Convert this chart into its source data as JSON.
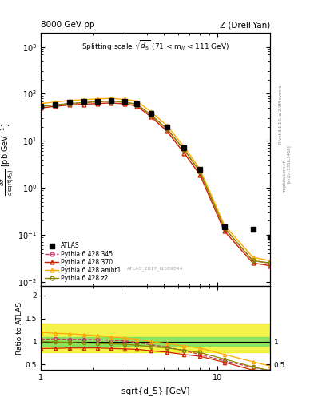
{
  "title_left": "8000 GeV pp",
  "title_right": "Z (Drell-Yan)",
  "annotation": "Splitting scale $\\sqrt{d_5}$ (71 < m$_{ll}$ < 111 GeV)",
  "watermark": "ATLAS_2017_I1589844",
  "ylabel_main": "d$\\sigma$/dsqrt($\\overline{d_5}$) [pb,GeV$^{-1}$]",
  "ylabel_ratio": "Ratio to ATLAS",
  "xlabel": "sqrt{d_5} [GeV]",
  "atlas_x": [
    1.0,
    1.2,
    1.45,
    1.75,
    2.1,
    2.5,
    3.0,
    3.5,
    4.2,
    5.2,
    6.5,
    8.0,
    11.0,
    16.0,
    20.0
  ],
  "atlas_y": [
    55,
    60,
    65,
    68,
    70,
    72,
    68,
    62,
    38,
    20,
    7.0,
    2.5,
    0.15,
    0.13,
    0.09
  ],
  "py345_x": [
    1.0,
    1.2,
    1.45,
    1.75,
    2.1,
    2.5,
    3.0,
    3.5,
    4.2,
    5.2,
    6.5,
    8.0,
    11.0,
    16.0,
    20.0
  ],
  "py345_y": [
    54,
    58,
    62,
    65,
    68,
    70,
    66,
    60,
    36,
    18,
    6.5,
    2.2,
    0.14,
    0.028,
    0.025
  ],
  "py370_x": [
    1.0,
    1.2,
    1.45,
    1.75,
    2.1,
    2.5,
    3.0,
    3.5,
    4.2,
    5.2,
    6.5,
    8.0,
    11.0,
    16.0,
    20.0
  ],
  "py370_y": [
    50,
    54,
    58,
    60,
    62,
    64,
    61,
    55,
    33,
    16,
    5.5,
    1.9,
    0.12,
    0.025,
    0.022
  ],
  "pyambt1_x": [
    1.0,
    1.2,
    1.45,
    1.75,
    2.1,
    2.5,
    3.0,
    3.5,
    4.2,
    5.2,
    6.5,
    8.0,
    11.0,
    16.0,
    20.0
  ],
  "pyambt1_y": [
    62,
    67,
    72,
    75,
    78,
    80,
    76,
    70,
    42,
    21,
    7.5,
    2.5,
    0.16,
    0.033,
    0.028
  ],
  "pyz2_x": [
    1.0,
    1.2,
    1.45,
    1.75,
    2.1,
    2.5,
    3.0,
    3.5,
    4.2,
    5.2,
    6.5,
    8.0,
    11.0,
    16.0,
    20.0
  ],
  "pyz2_y": [
    54,
    58,
    62,
    65,
    68,
    70,
    66,
    60,
    36,
    18,
    6.5,
    2.2,
    0.14,
    0.028,
    0.025
  ],
  "ratio_py345_x": [
    1.0,
    1.2,
    1.45,
    1.75,
    2.1,
    2.5,
    3.0,
    3.5,
    4.2,
    5.2,
    6.5,
    8.0,
    11.0,
    16.0,
    20.0
  ],
  "ratio_py345_y": [
    1.05,
    1.06,
    1.05,
    1.05,
    1.04,
    1.03,
    1.01,
    0.98,
    0.93,
    0.88,
    0.8,
    0.72,
    0.58,
    0.44,
    0.37
  ],
  "ratio_py370_x": [
    1.0,
    1.2,
    1.45,
    1.75,
    2.1,
    2.5,
    3.0,
    3.5,
    4.2,
    5.2,
    6.5,
    8.0,
    11.0,
    16.0,
    20.0
  ],
  "ratio_py370_y": [
    0.85,
    0.85,
    0.86,
    0.86,
    0.86,
    0.85,
    0.84,
    0.83,
    0.8,
    0.77,
    0.72,
    0.68,
    0.55,
    0.38,
    0.3
  ],
  "ratio_pyambt1_x": [
    1.0,
    1.2,
    1.45,
    1.75,
    2.1,
    2.5,
    3.0,
    3.5,
    4.2,
    5.2,
    6.5,
    8.0,
    11.0,
    16.0,
    20.0
  ],
  "ratio_pyambt1_y": [
    1.2,
    1.18,
    1.17,
    1.15,
    1.13,
    1.1,
    1.08,
    1.05,
    1.0,
    0.96,
    0.9,
    0.86,
    0.72,
    0.56,
    0.47
  ],
  "ratio_pyz2_x": [
    1.0,
    1.2,
    1.45,
    1.75,
    2.1,
    2.5,
    3.0,
    3.5,
    4.2,
    5.2,
    6.5,
    8.0,
    11.0,
    16.0,
    20.0
  ],
  "ratio_pyz2_y": [
    1.0,
    0.99,
    0.98,
    0.97,
    0.96,
    0.95,
    0.94,
    0.92,
    0.89,
    0.86,
    0.81,
    0.76,
    0.62,
    0.45,
    0.37
  ],
  "band_yellow_xlo": 1.0,
  "band_yellow_xhi": 20.0,
  "band_yellow_ylo": 0.76,
  "band_yellow_yhi": 1.4,
  "band_green_xlo": 1.0,
  "band_green_xhi": 20.0,
  "band_green_ylo": 0.9,
  "band_green_yhi": 1.1,
  "color_atlas": "#000000",
  "color_py345": "#cc3366",
  "color_py370": "#cc2200",
  "color_pyambt1": "#ffaa00",
  "color_pyz2": "#888800",
  "color_green_band": "#66dd66",
  "color_yellow_band": "#eeee00",
  "xlim": [
    1.0,
    20.0
  ],
  "ylim_main": [
    0.008,
    2000
  ],
  "ylim_ratio": [
    0.38,
    2.2
  ]
}
